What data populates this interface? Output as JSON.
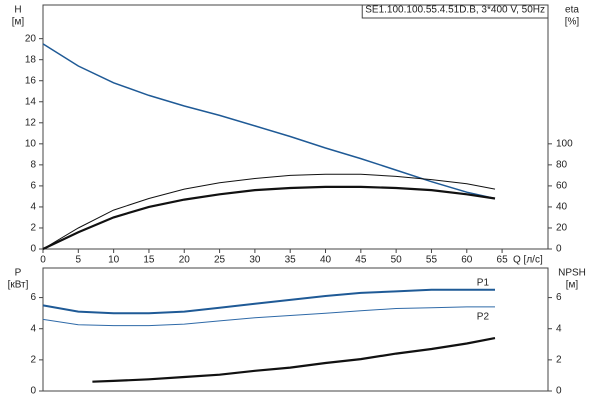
{
  "chart_data": [
    {
      "type": "line",
      "title": "SE1.100.100.55.4.51D.B, 3*400 V, 50Hz",
      "xlabel": "Q [л/с]",
      "ylabel": "H",
      "ylabel_unit": "[м]",
      "y2label": "eta",
      "y2label_unit": "[%]",
      "xlim": [
        0,
        71.5
      ],
      "xticks": [
        0,
        5,
        10,
        15,
        20,
        25,
        30,
        35,
        40,
        45,
        50,
        55,
        60,
        65
      ],
      "ylim": [
        0,
        23.2
      ],
      "yticks": [
        0,
        2,
        4,
        6,
        8,
        10,
        12,
        14,
        16,
        18,
        20
      ],
      "y2lim": [
        0,
        232
      ],
      "y2ticks": [
        0,
        20,
        40,
        60,
        80,
        100
      ],
      "x": [
        0,
        5,
        10,
        15,
        20,
        25,
        30,
        35,
        40,
        45,
        50,
        55,
        60,
        64
      ],
      "series": [
        {
          "color": "#1f5a96",
          "linewidth": 1.5,
          "axis": "y",
          "values": [
            19.5,
            17.4,
            15.8,
            14.6,
            13.6,
            12.7,
            11.7,
            10.7,
            9.6,
            8.6,
            7.5,
            6.4,
            5.4,
            4.8
          ]
        },
        {
          "color": "#111111",
          "linewidth": 1,
          "axis": "y2",
          "values": [
            0,
            20,
            37,
            48,
            57,
            63,
            67,
            70,
            71,
            71,
            69,
            66,
            62,
            57
          ]
        },
        {
          "color": "#111111",
          "linewidth": 2.2,
          "axis": "y2",
          "values": [
            0,
            16,
            30,
            40,
            47,
            52,
            56,
            58,
            59,
            59,
            58,
            56,
            52,
            48
          ]
        }
      ]
    },
    {
      "type": "line",
      "ylabel": "P",
      "ylabel_unit": "[кВт]",
      "y2label": "NPSH",
      "y2label_unit": "[м]",
      "xlim": [
        0,
        71.5
      ],
      "ylim": [
        0,
        7.9
      ],
      "yticks": [
        0,
        2,
        4,
        6
      ],
      "y2lim": [
        0,
        7.9
      ],
      "y2ticks": [
        0,
        2,
        4,
        6
      ],
      "x": [
        0,
        5,
        10,
        15,
        20,
        25,
        30,
        35,
        40,
        45,
        50,
        55,
        60,
        64
      ],
      "series": [
        {
          "name": "P1",
          "color": "#1f5a96",
          "linewidth": 2,
          "axis": "y",
          "values": [
            5.5,
            5.1,
            5.0,
            5.0,
            5.1,
            5.35,
            5.6,
            5.85,
            6.1,
            6.3,
            6.4,
            6.5,
            6.5,
            6.5
          ]
        },
        {
          "name": "P2",
          "color": "#2f6aa8",
          "linewidth": 1,
          "axis": "y",
          "values": [
            4.6,
            4.25,
            4.2,
            4.2,
            4.3,
            4.5,
            4.7,
            4.85,
            5.0,
            5.15,
            5.3,
            5.35,
            5.4,
            5.4
          ]
        },
        {
          "color": "#111111",
          "linewidth": 2.2,
          "axis": "y2",
          "x": [
            7,
            10,
            15,
            20,
            25,
            30,
            35,
            40,
            45,
            50,
            55,
            60,
            64
          ],
          "values": [
            0.6,
            0.65,
            0.75,
            0.9,
            1.05,
            1.3,
            1.5,
            1.8,
            2.05,
            2.4,
            2.7,
            3.05,
            3.4
          ]
        }
      ]
    }
  ]
}
